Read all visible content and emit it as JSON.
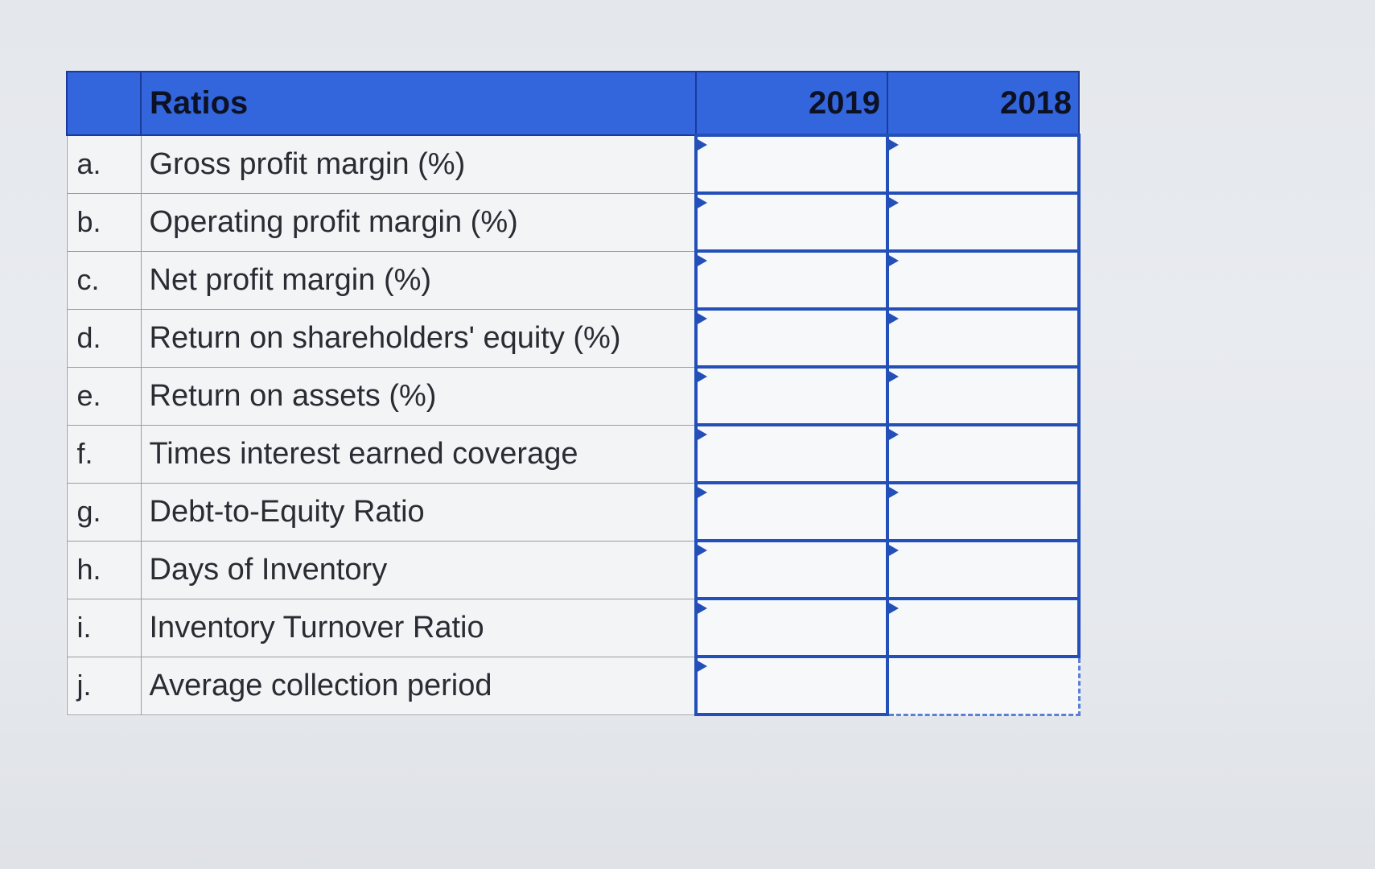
{
  "table": {
    "header": {
      "ratios_label": "Ratios",
      "year_2019": "2019",
      "year_2018": "2018"
    },
    "rows": [
      {
        "letter": "a.",
        "label": "Gross profit margin (%)",
        "value_2019": "",
        "value_2018": ""
      },
      {
        "letter": "b.",
        "label": "Operating profit margin (%)",
        "value_2019": "",
        "value_2018": ""
      },
      {
        "letter": "c.",
        "label": "Net profit margin (%)",
        "value_2019": "",
        "value_2018": ""
      },
      {
        "letter": "d.",
        "label": "Return on shareholders' equity (%)",
        "value_2019": "",
        "value_2018": ""
      },
      {
        "letter": "e.",
        "label": "Return on assets (%)",
        "value_2019": "",
        "value_2018": ""
      },
      {
        "letter": "f.",
        "label": "Times interest earned coverage",
        "value_2019": "",
        "value_2018": ""
      },
      {
        "letter": "g.",
        "label": "Debt-to-Equity Ratio",
        "value_2019": "",
        "value_2018": ""
      },
      {
        "letter": "h.",
        "label": "Days of Inventory",
        "value_2019": "",
        "value_2018": ""
      },
      {
        "letter": "i.",
        "label": "Inventory Turnover Ratio",
        "value_2019": "",
        "value_2018": ""
      },
      {
        "letter": "j.",
        "label": "Average collection period",
        "value_2019": "",
        "value_2018": ""
      }
    ]
  },
  "colors": {
    "header_bg": "#3366dd",
    "input_border": "#234fb8",
    "cell_bg": "#f3f4f6"
  }
}
